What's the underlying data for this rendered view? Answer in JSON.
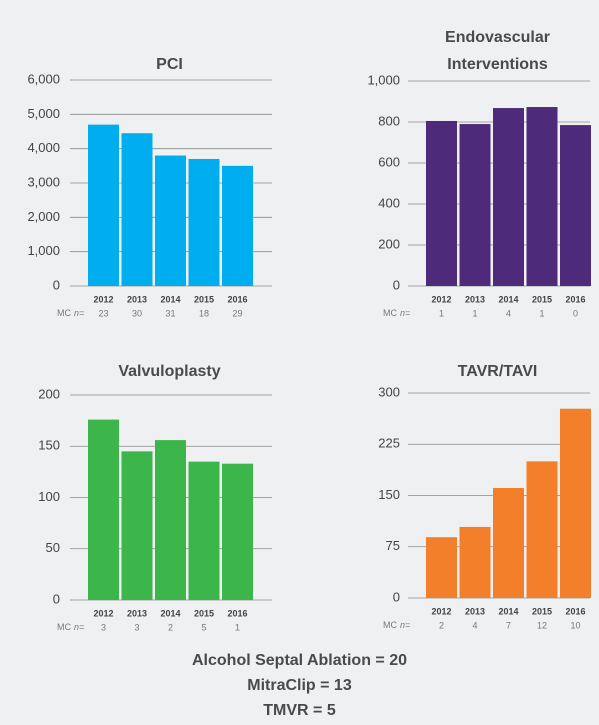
{
  "chart_data": [
    {
      "type": "bar",
      "title": "PCI",
      "categories": [
        "2012",
        "2013",
        "2014",
        "2015",
        "2016"
      ],
      "values": [
        4700,
        4450,
        3800,
        3700,
        3500
      ],
      "color": "#00aeef",
      "ylim": [
        0,
        6000
      ],
      "yticks": [
        0,
        {
          "value": 1000,
          "label": "1,000"
        },
        {
          "value": 2000,
          "label": "2,000"
        },
        {
          "value": 3000,
          "label": "3,000"
        },
        {
          "value": 4000,
          "label": "4,000"
        },
        {
          "value": 5000,
          "label": "5,000"
        },
        {
          "value": 6000,
          "label": "6,000"
        }
      ],
      "grid": true,
      "count_label": "MC",
      "count_label_italic": "n=",
      "counts": [
        23,
        30,
        31,
        18,
        29
      ]
    },
    {
      "type": "bar",
      "title": "Endovascular Interventions",
      "categories": [
        "2012",
        "2013",
        "2014",
        "2015",
        "2016"
      ],
      "values": [
        805,
        790,
        868,
        873,
        785
      ],
      "color": "#4e2a7a",
      "ylim": [
        0,
        1000
      ],
      "yticks": [
        0,
        200,
        400,
        600,
        800,
        {
          "value": 1000,
          "label": "1,000"
        }
      ],
      "grid": true,
      "count_label": "MC",
      "count_label_italic": "n=",
      "counts": [
        1,
        1,
        4,
        1,
        0
      ]
    },
    {
      "type": "bar",
      "title": "Valvuloplasty",
      "categories": [
        "2012",
        "2013",
        "2014",
        "2015",
        "2016"
      ],
      "values": [
        176,
        145,
        156,
        135,
        133
      ],
      "color": "#3cb54a",
      "ylim": [
        0,
        200
      ],
      "yticks": [
        0,
        50,
        100,
        150,
        200
      ],
      "grid": true,
      "count_label": "MC",
      "count_label_italic": "n=",
      "counts": [
        3,
        3,
        2,
        5,
        1
      ]
    },
    {
      "type": "bar",
      "title": "TAVR/TAVI",
      "categories": [
        "2012",
        "2013",
        "2014",
        "2015",
        "2016"
      ],
      "values": [
        89,
        104,
        161,
        200,
        277
      ],
      "color": "#f37f2a",
      "ylim": [
        0,
        300
      ],
      "yticks": [
        0,
        75,
        150,
        225,
        300
      ],
      "grid": true,
      "count_label": "MC",
      "count_label_italic": "n=",
      "counts": [
        2,
        4,
        7,
        12,
        10
      ]
    }
  ],
  "footer": [
    "Alcohol Septal Ablation = 20",
    "MitraClip = 13",
    "TMVR = 5"
  ]
}
